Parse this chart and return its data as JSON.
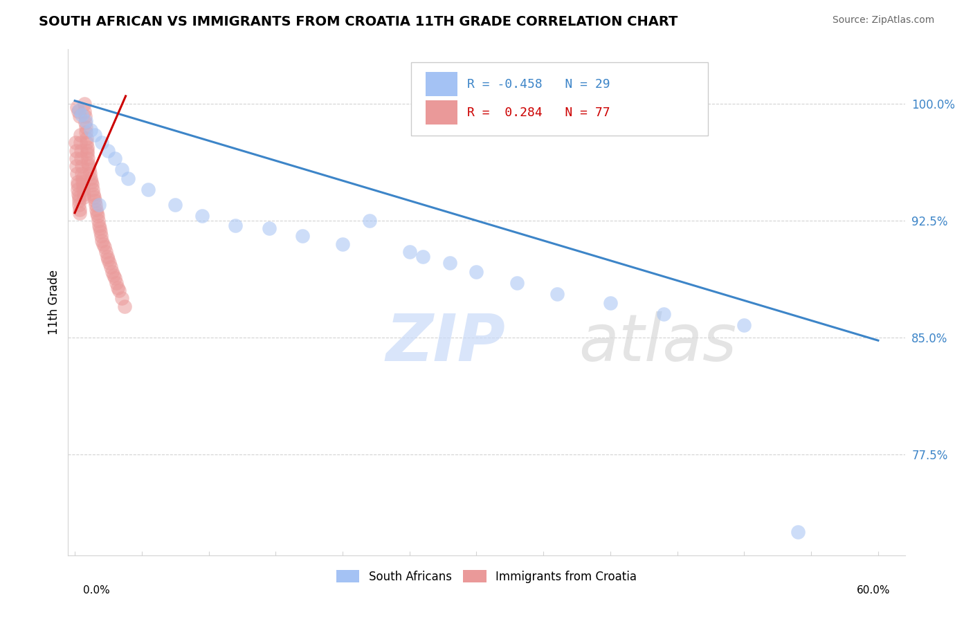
{
  "title": "SOUTH AFRICAN VS IMMIGRANTS FROM CROATIA 11TH GRADE CORRELATION CHART",
  "source": "Source: ZipAtlas.com",
  "ylabel_label": "11th Grade",
  "xlim": [
    -0.5,
    62.0
  ],
  "ylim": [
    71.0,
    103.5
  ],
  "yticks": [
    77.5,
    85.0,
    92.5,
    100.0
  ],
  "ytick_labels": [
    "77.5%",
    "85.0%",
    "92.5%",
    "100.0%"
  ],
  "blue_R": -0.458,
  "blue_N": 29,
  "pink_R": 0.284,
  "pink_N": 77,
  "blue_color": "#a4c2f4",
  "pink_color": "#ea9999",
  "blue_line_color": "#3d85c8",
  "pink_line_color": "#cc0000",
  "watermark": "ZIPatlas",
  "blue_line_x": [
    0.0,
    60.0
  ],
  "blue_line_y": [
    100.2,
    84.8
  ],
  "pink_line_x": [
    0.0,
    3.8
  ],
  "pink_line_y": [
    93.0,
    100.5
  ],
  "blue_dots_x": [
    0.3,
    0.5,
    0.8,
    1.2,
    1.5,
    2.0,
    2.5,
    3.0,
    3.5,
    4.0,
    5.5,
    7.5,
    9.5,
    12.0,
    14.5,
    17.0,
    20.0,
    22.0,
    25.0,
    26.0,
    28.0,
    30.0,
    33.0,
    36.0,
    40.0,
    44.0,
    50.0,
    54.0,
    1.8
  ],
  "blue_dots_y": [
    99.6,
    99.3,
    98.9,
    98.3,
    98.0,
    97.5,
    97.0,
    96.5,
    95.8,
    95.2,
    94.5,
    93.5,
    92.8,
    92.2,
    92.0,
    91.5,
    91.0,
    92.5,
    90.5,
    90.2,
    89.8,
    89.2,
    88.5,
    87.8,
    87.2,
    86.5,
    85.8,
    72.5,
    93.5
  ],
  "pink_dots_x": [
    0.05,
    0.08,
    0.1,
    0.12,
    0.15,
    0.18,
    0.2,
    0.22,
    0.25,
    0.28,
    0.3,
    0.32,
    0.35,
    0.38,
    0.4,
    0.42,
    0.45,
    0.48,
    0.5,
    0.52,
    0.55,
    0.58,
    0.6,
    0.62,
    0.65,
    0.68,
    0.7,
    0.72,
    0.75,
    0.78,
    0.8,
    0.82,
    0.85,
    0.88,
    0.9,
    0.92,
    0.95,
    0.98,
    1.0,
    1.05,
    1.1,
    1.15,
    1.2,
    1.25,
    1.3,
    1.35,
    1.4,
    1.45,
    1.5,
    1.55,
    1.6,
    1.65,
    1.7,
    1.75,
    1.8,
    1.85,
    1.9,
    1.95,
    2.0,
    2.1,
    2.2,
    2.3,
    2.4,
    2.5,
    2.6,
    2.7,
    2.8,
    2.9,
    3.0,
    3.1,
    3.2,
    3.3,
    3.5,
    3.7,
    0.15,
    0.25,
    0.35
  ],
  "pink_dots_y": [
    97.5,
    97.0,
    96.5,
    96.0,
    95.5,
    95.0,
    94.8,
    94.5,
    94.2,
    94.0,
    93.8,
    93.5,
    93.2,
    93.0,
    98.0,
    97.5,
    97.0,
    96.5,
    96.0,
    95.5,
    95.2,
    95.0,
    94.8,
    94.5,
    94.2,
    94.0,
    100.0,
    99.5,
    99.2,
    98.8,
    98.5,
    98.2,
    97.8,
    97.5,
    97.2,
    97.0,
    96.8,
    96.5,
    96.2,
    96.0,
    95.8,
    95.5,
    95.2,
    95.0,
    94.8,
    94.5,
    94.2,
    94.0,
    93.8,
    93.5,
    93.2,
    93.0,
    92.8,
    92.5,
    92.2,
    92.0,
    91.8,
    91.5,
    91.2,
    91.0,
    90.8,
    90.5,
    90.2,
    90.0,
    89.8,
    89.5,
    89.2,
    89.0,
    88.8,
    88.5,
    88.2,
    88.0,
    87.5,
    87.0,
    99.8,
    99.5,
    99.2
  ]
}
